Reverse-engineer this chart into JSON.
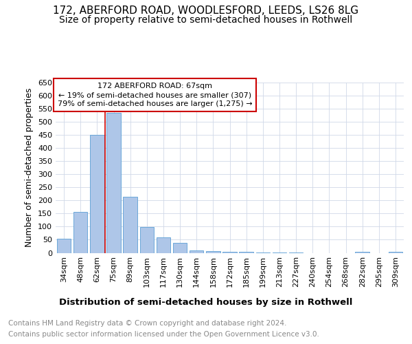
{
  "title": "172, ABERFORD ROAD, WOODLESFORD, LEEDS, LS26 8LG",
  "subtitle": "Size of property relative to semi-detached houses in Rothwell",
  "xlabel": "Distribution of semi-detached houses by size in Rothwell",
  "ylabel": "Number of semi-detached properties",
  "categories": [
    "34sqm",
    "48sqm",
    "62sqm",
    "75sqm",
    "89sqm",
    "103sqm",
    "117sqm",
    "130sqm",
    "144sqm",
    "158sqm",
    "172sqm",
    "185sqm",
    "199sqm",
    "213sqm",
    "227sqm",
    "240sqm",
    "254sqm",
    "268sqm",
    "282sqm",
    "295sqm",
    "309sqm"
  ],
  "values": [
    53,
    155,
    450,
    535,
    215,
    98,
    58,
    37,
    10,
    6,
    4,
    5,
    2,
    1,
    1,
    0,
    0,
    0,
    5,
    0,
    5
  ],
  "bar_color": "#aec6e8",
  "bar_edge_color": "#5a9fd4",
  "annotation_title": "172 ABERFORD ROAD: 67sqm",
  "annotation_line1": "← 19% of semi-detached houses are smaller (307)",
  "annotation_line2": "79% of semi-detached houses are larger (1,275) →",
  "red_line_x": 2.5,
  "ylim": [
    0,
    650
  ],
  "yticks": [
    0,
    50,
    100,
    150,
    200,
    250,
    300,
    350,
    400,
    450,
    500,
    550,
    600,
    650
  ],
  "footer_line1": "Contains HM Land Registry data © Crown copyright and database right 2024.",
  "footer_line2": "Contains public sector information licensed under the Open Government Licence v3.0.",
  "bg_color": "#ffffff",
  "grid_color": "#d0d8e8",
  "title_fontsize": 11,
  "subtitle_fontsize": 10,
  "ylabel_fontsize": 9,
  "xlabel_fontsize": 9.5,
  "tick_fontsize": 8,
  "footer_fontsize": 7.5,
  "annot_fontsize": 8
}
